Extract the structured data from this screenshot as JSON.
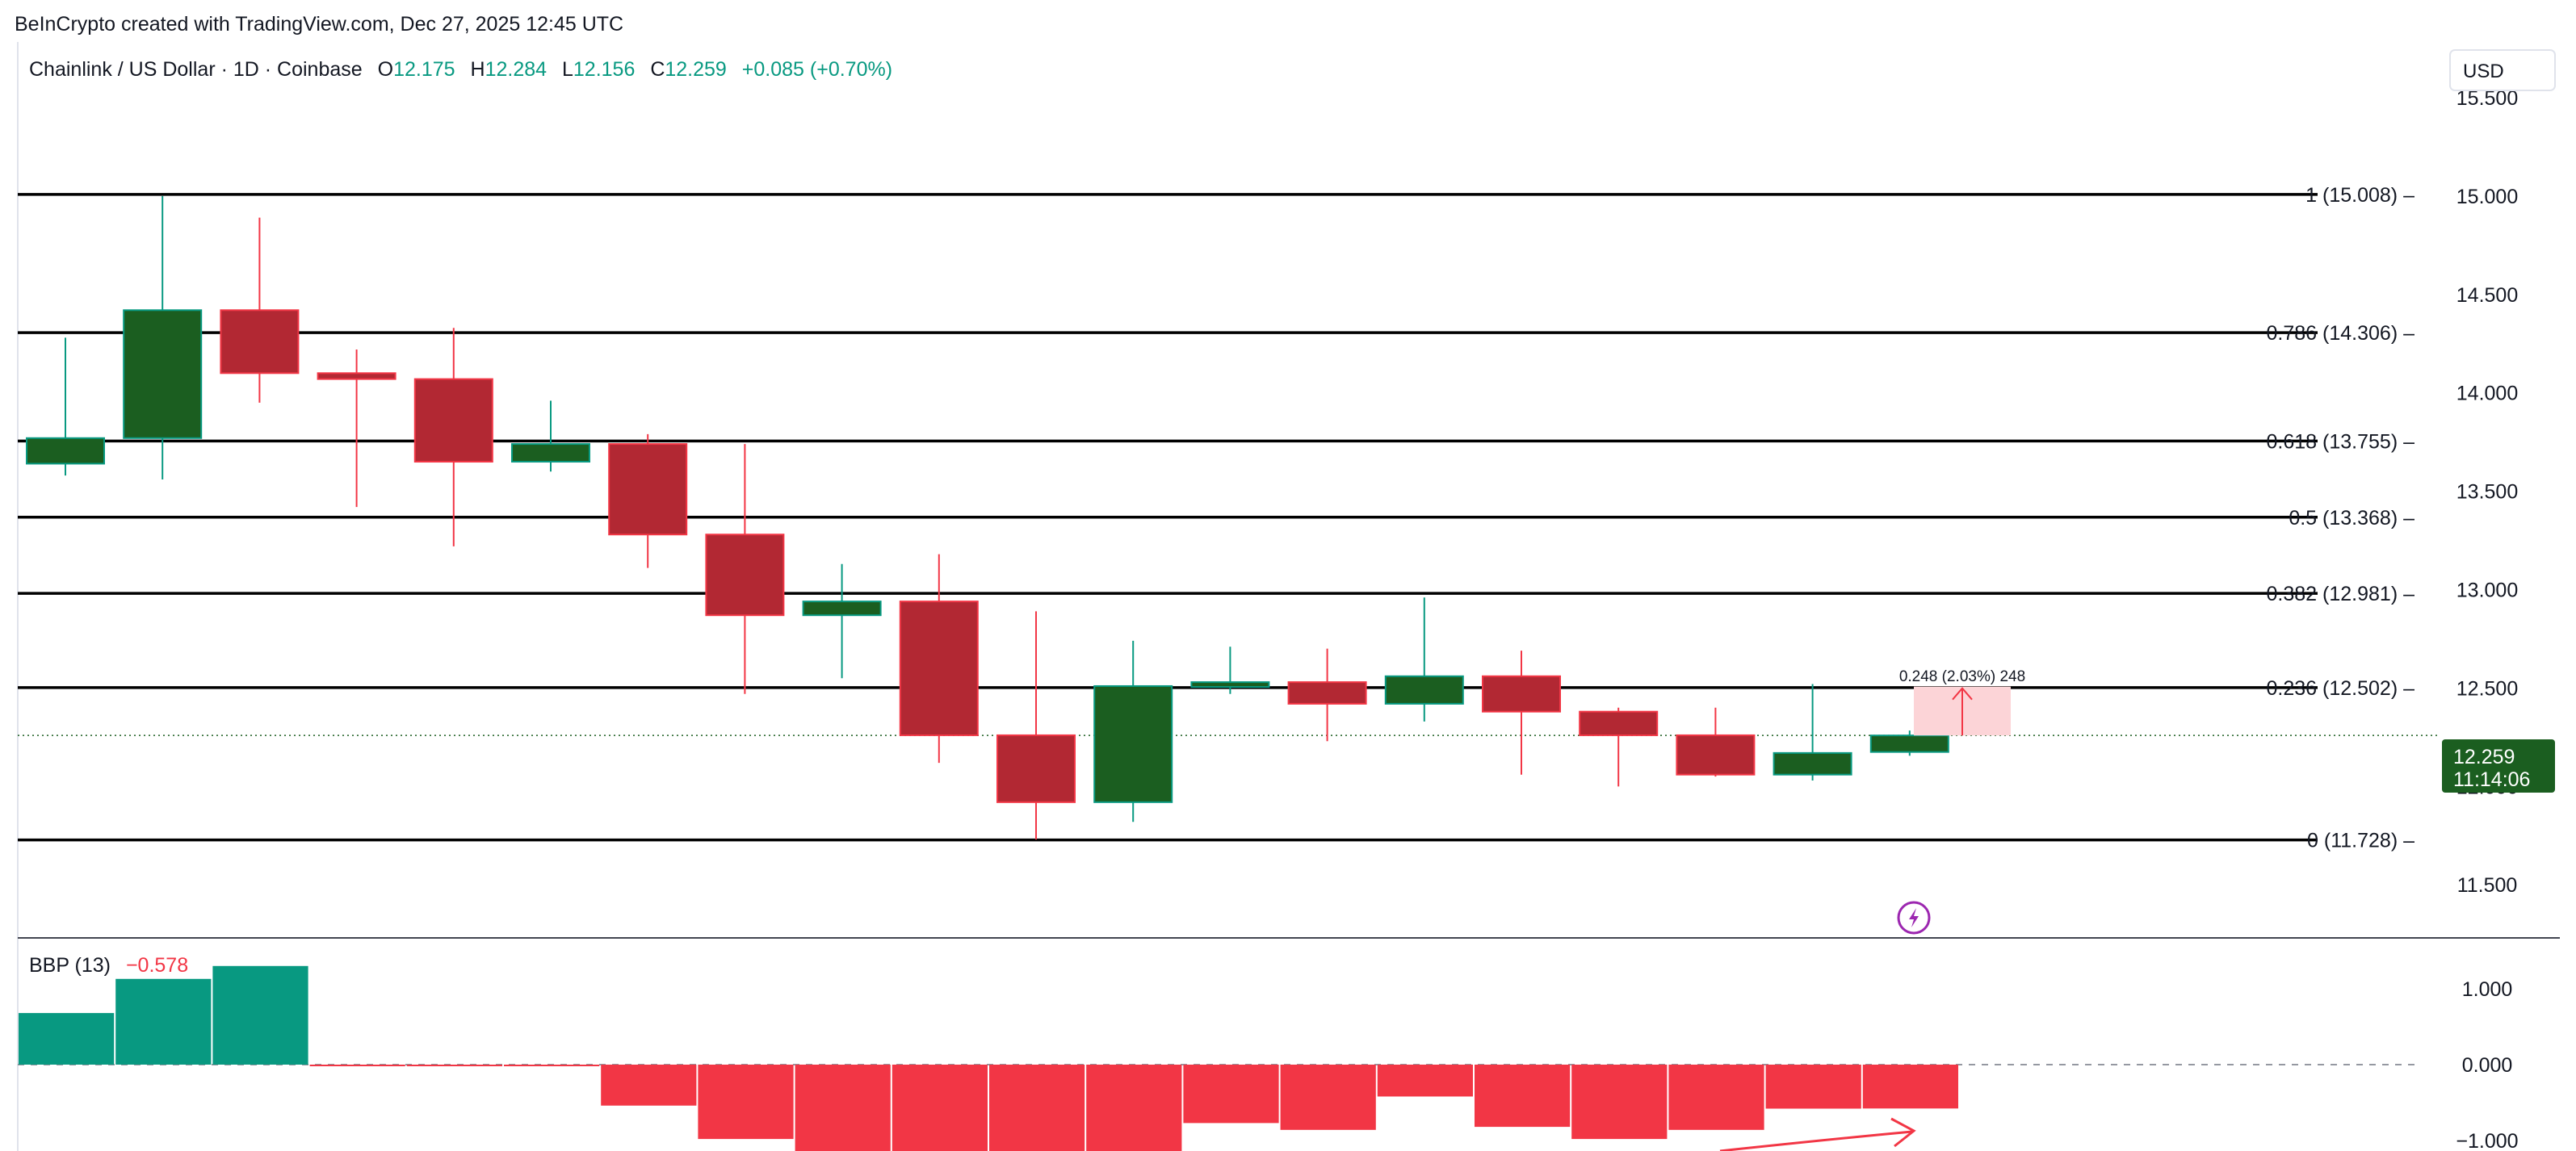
{
  "watermark": "BeInCrypto created with TradingView.com, Dec 27, 2025 12:45 UTC",
  "legend": {
    "symbol": "Chainlink / US Dollar · 1D · Coinbase",
    "o_label": "O",
    "o_value": "12.175",
    "h_label": "H",
    "h_value": "12.284",
    "l_label": "L",
    "l_value": "12.156",
    "c_label": "C",
    "c_value": "12.259",
    "change": "+0.085 (+0.70%)"
  },
  "currency_button": "USD",
  "price_tag": {
    "price": "12.259",
    "countdown": "11:14:06"
  },
  "measure_label": "0.248 (2.03%) 248",
  "indicator": {
    "name": "BBP (13)",
    "value": "−0.578"
  },
  "colors": {
    "up": "#1b5e20",
    "down": "#b22833",
    "up_wick": "#089981",
    "down_wick": "#f23645",
    "bbp_pos": "#089981",
    "bbp_neg": "#f23645",
    "fib_line": "#000000",
    "measure_fill": "#fcd4d7",
    "measure_stroke": "#f23645",
    "lightning": "#9c27b0"
  },
  "chart_data": [
    {
      "type": "candlestick",
      "ylim": [
        11.3,
        15.75
      ],
      "y_ticks": [
        "15.500",
        "15.000",
        "14.500",
        "14.000",
        "13.500",
        "13.000",
        "12.500",
        "12.000",
        "11.500"
      ],
      "y_tick_values": [
        15.5,
        15.0,
        14.5,
        14.0,
        13.5,
        13.0,
        12.5,
        12.0,
        11.5
      ],
      "candles": [
        {
          "o": 13.64,
          "h": 14.28,
          "l": 13.58,
          "c": 13.77
        },
        {
          "o": 13.77,
          "h": 15.0,
          "l": 13.56,
          "c": 14.42
        },
        {
          "o": 14.42,
          "h": 14.89,
          "l": 13.95,
          "c": 14.1
        },
        {
          "o": 14.1,
          "h": 14.22,
          "l": 13.42,
          "c": 14.07
        },
        {
          "o": 14.07,
          "h": 14.33,
          "l": 13.22,
          "c": 13.65
        },
        {
          "o": 13.65,
          "h": 13.96,
          "l": 13.6,
          "c": 13.74
        },
        {
          "o": 13.74,
          "h": 13.79,
          "l": 13.11,
          "c": 13.28
        },
        {
          "o": 13.28,
          "h": 13.74,
          "l": 12.47,
          "c": 12.87
        },
        {
          "o": 12.87,
          "h": 13.13,
          "l": 12.55,
          "c": 12.94
        },
        {
          "o": 12.94,
          "h": 13.18,
          "l": 12.12,
          "c": 12.26
        },
        {
          "o": 12.26,
          "h": 12.89,
          "l": 11.73,
          "c": 11.92
        },
        {
          "o": 11.92,
          "h": 12.74,
          "l": 11.82,
          "c": 12.51
        },
        {
          "o": 12.51,
          "h": 12.71,
          "l": 12.47,
          "c": 12.53
        },
        {
          "o": 12.53,
          "h": 12.7,
          "l": 12.23,
          "c": 12.42
        },
        {
          "o": 12.42,
          "h": 12.96,
          "l": 12.33,
          "c": 12.56
        },
        {
          "o": 12.56,
          "h": 12.69,
          "l": 12.06,
          "c": 12.38
        },
        {
          "o": 12.38,
          "h": 12.4,
          "l": 12.0,
          "c": 12.26
        },
        {
          "o": 12.26,
          "h": 12.4,
          "l": 12.05,
          "c": 12.06
        },
        {
          "o": 12.06,
          "h": 12.52,
          "l": 12.03,
          "c": 12.17
        },
        {
          "o": 12.175,
          "h": 12.284,
          "l": 12.156,
          "c": 12.259
        }
      ],
      "fib_levels": [
        {
          "label": "1 (15.008)",
          "value": 15.008
        },
        {
          "label": "0.786 (14.306)",
          "value": 14.306
        },
        {
          "label": "0.618 (13.755)",
          "value": 13.755
        },
        {
          "label": "0.5 (13.368)",
          "value": 13.368
        },
        {
          "label": "0.382 (12.981)",
          "value": 12.981
        },
        {
          "label": "0.236 (12.502)",
          "value": 12.502
        },
        {
          "label": "0 (11.728)",
          "value": 11.728
        }
      ],
      "current_price": 12.259,
      "measure": {
        "from": 12.259,
        "to": 12.507
      }
    },
    {
      "type": "bar",
      "title": "BBP (13)",
      "ylim": [
        -1.15,
        1.3
      ],
      "y_ticks": [
        "1.000",
        "0.000",
        "−1.000"
      ],
      "y_tick_values": [
        1.0,
        0.0,
        -1.0
      ],
      "values": [
        0.68,
        1.13,
        1.3,
        -0.02,
        -0.02,
        -0.01,
        -0.54,
        -0.98,
        -1.15,
        -1.15,
        -1.15,
        -1.15,
        -0.77,
        -0.86,
        -0.42,
        -0.82,
        -0.98,
        -0.86,
        -0.58,
        -0.578
      ]
    }
  ]
}
